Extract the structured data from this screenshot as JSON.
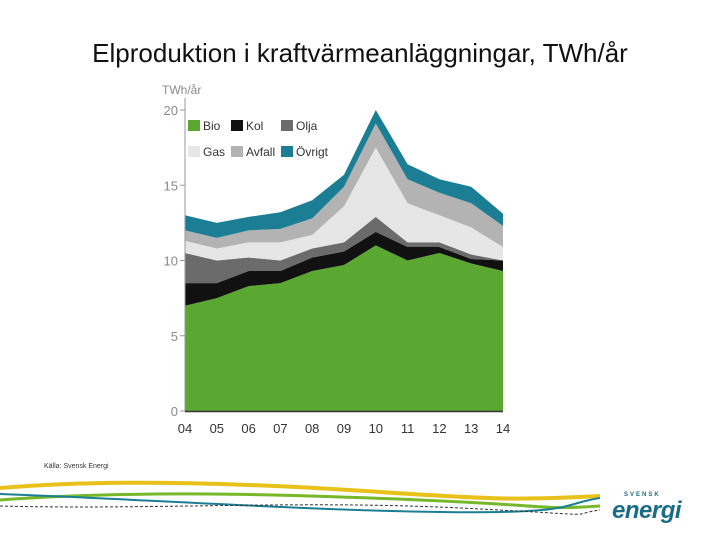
{
  "slide": {
    "title": "Elproduktion i kraftvärmeanläggningar, TWh/år",
    "source": "Källa: Svensk Energi"
  },
  "logo": {
    "small_text": "SVENSK",
    "big_text": "energi"
  },
  "chart_data": {
    "type": "area",
    "stacked": true,
    "title": "",
    "ylabel": "TWh/år",
    "xlabel": "",
    "categories": [
      "04",
      "05",
      "06",
      "07",
      "08",
      "09",
      "10",
      "11",
      "12",
      "13",
      "14"
    ],
    "ylim": [
      0,
      20
    ],
    "yticks": [
      0,
      5,
      10,
      15,
      20
    ],
    "grid": false,
    "legend_position": "top-left",
    "series": [
      {
        "name": "Bio",
        "color": "#5aa832",
        "values": [
          7.0,
          7.5,
          8.3,
          8.5,
          9.3,
          9.7,
          11.0,
          10.0,
          10.5,
          9.8,
          9.3
        ]
      },
      {
        "name": "Kol",
        "color": "#111111",
        "values": [
          1.5,
          1.0,
          1.0,
          0.8,
          0.9,
          0.9,
          0.9,
          0.9,
          0.4,
          0.3,
          0.7
        ]
      },
      {
        "name": "Olja",
        "color": "#6b6b6b",
        "values": [
          2.0,
          1.5,
          0.9,
          0.7,
          0.6,
          0.6,
          1.0,
          0.3,
          0.3,
          0.3,
          0.0
        ]
      },
      {
        "name": "Gas",
        "color": "#e6e6e6",
        "values": [
          0.8,
          0.8,
          1.0,
          1.2,
          0.9,
          2.4,
          4.6,
          2.6,
          1.8,
          1.8,
          0.9
        ]
      },
      {
        "name": "Avfall",
        "color": "#b3b3b3",
        "values": [
          0.7,
          0.7,
          0.8,
          0.9,
          1.1,
          1.3,
          1.6,
          1.6,
          1.5,
          1.6,
          1.4
        ]
      },
      {
        "name": "Övrigt",
        "color": "#1b7e94",
        "values": [
          1.0,
          1.0,
          0.9,
          1.1,
          1.2,
          0.8,
          0.9,
          1.0,
          0.9,
          1.1,
          0.8
        ]
      }
    ]
  }
}
